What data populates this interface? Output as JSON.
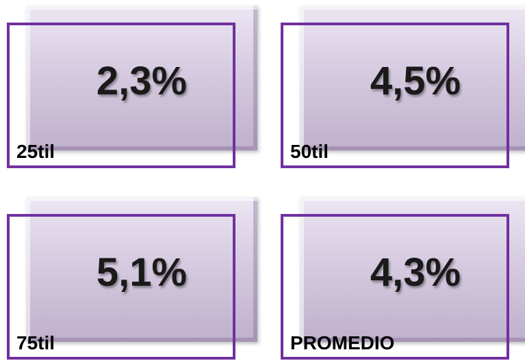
{
  "tiles": [
    {
      "value": "2,3%",
      "label": "25til"
    },
    {
      "value": "4,5%",
      "label": "50til"
    },
    {
      "value": "5,1%",
      "label": "75til"
    },
    {
      "value": "4,3%",
      "label": "PROMEDIO"
    }
  ]
}
